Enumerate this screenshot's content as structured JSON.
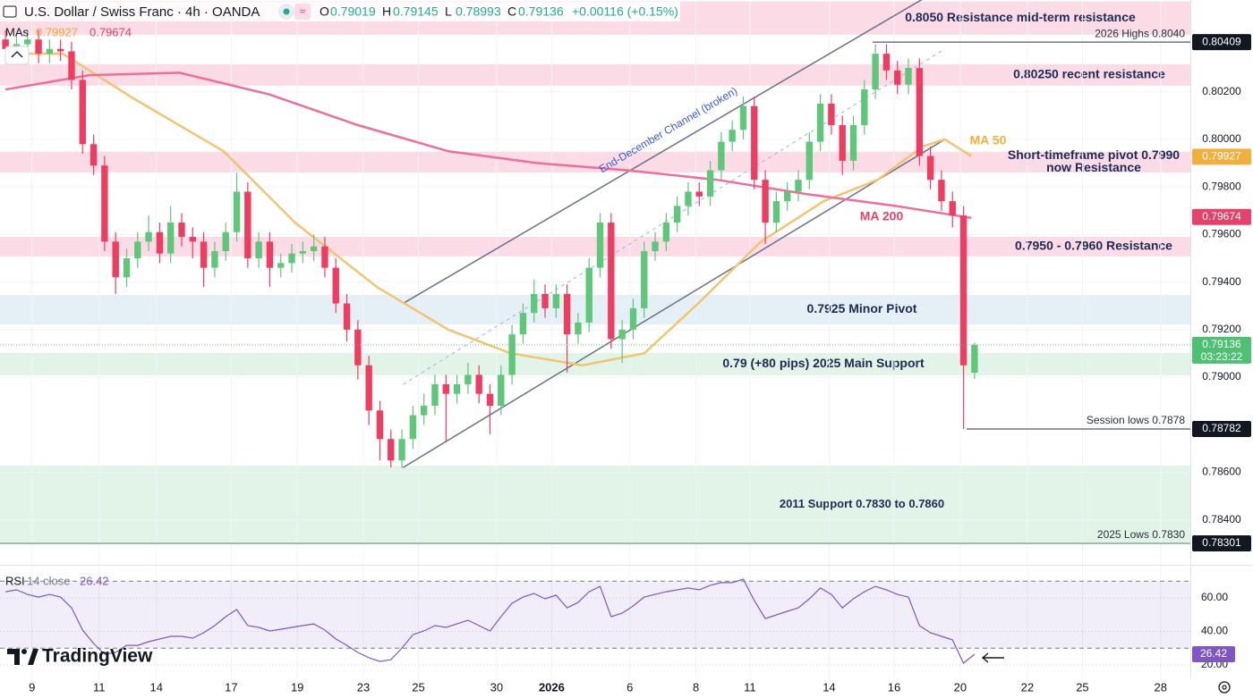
{
  "chart_data": {
    "type": "candlestick",
    "header": {
      "symbol": "U.S. Dollar / Swiss Franc · 4h · OANDA",
      "ohlc_labels": [
        "O",
        "H",
        "L",
        "C"
      ],
      "change": "+0.00116 (+0.15%)",
      "mas_label": "MAs",
      "countdown": "03:23:22"
    },
    "up_color": "#5fc67a",
    "down_color": "#ee3d61",
    "xlim": [
      -0.5,
      107.6
    ],
    "xticks": [
      {
        "value": 2.4,
        "label": "9"
      },
      {
        "value": 8.5,
        "label": "11"
      },
      {
        "value": 13.7,
        "label": "14"
      },
      {
        "value": 20.5,
        "label": "17"
      },
      {
        "value": 26.5,
        "label": "19"
      },
      {
        "value": 32.5,
        "label": "23"
      },
      {
        "value": 37.5,
        "label": "25"
      },
      {
        "value": 44.6,
        "label": "30"
      },
      {
        "value": 49.6,
        "label": "2026"
      },
      {
        "value": 56.7,
        "label": "6"
      },
      {
        "value": 62.7,
        "label": "8"
      },
      {
        "value": 67.6,
        "label": "11"
      },
      {
        "value": 74.8,
        "label": "14"
      },
      {
        "value": 80.7,
        "label": "16"
      },
      {
        "value": 86.7,
        "label": "20"
      },
      {
        "value": 92.8,
        "label": "22"
      },
      {
        "value": 97.8,
        "label": "25"
      },
      {
        "value": 104.9,
        "label": "28"
      }
    ],
    "ylim": [
      0.78211,
      0.80586
    ],
    "yticks": [
      {
        "value": 0.802,
        "label": "0.80200"
      },
      {
        "value": 0.8,
        "label": "0.80000"
      },
      {
        "value": 0.798,
        "label": "0.79800"
      },
      {
        "value": 0.796,
        "label": "0.79600"
      },
      {
        "value": 0.794,
        "label": "0.79400"
      },
      {
        "value": 0.792,
        "label": "0.79200"
      },
      {
        "value": 0.79,
        "label": "0.79000"
      },
      {
        "value": 0.786,
        "label": "0.78600"
      },
      {
        "value": 0.784,
        "label": "0.78400"
      }
    ],
    "grid": true,
    "open": [
      0.8042,
      0.8038,
      0.804,
      0.8042,
      0.8036,
      0.8038,
      0.8037,
      0.8025,
      0.7998,
      0.7989,
      0.7957,
      0.7942,
      0.795,
      0.7957,
      0.7961,
      0.7952,
      0.7965,
      0.7959,
      0.7957,
      0.7946,
      0.7953,
      0.7961,
      0.7978,
      0.795,
      0.7957,
      0.7946,
      0.7948,
      0.7952,
      0.7953,
      0.7955,
      0.7946,
      0.7931,
      0.792,
      0.7905,
      0.7886,
      0.7874,
      0.7865,
      0.7874,
      0.7884,
      0.7888,
      0.7897,
      0.7893,
      0.7897,
      0.7901,
      0.7893,
      0.7888,
      0.7901,
      0.7918,
      0.7927,
      0.7935,
      0.7929,
      0.7935,
      0.7918,
      0.7923,
      0.7946,
      0.7965,
      0.7916,
      0.792,
      0.7929,
      0.7953,
      0.7957,
      0.7965,
      0.7972,
      0.7978,
      0.7976,
      0.7987,
      0.7999,
      0.8004,
      0.8014,
      0.7983,
      0.7965,
      0.7974,
      0.7978,
      0.7983,
      0.7999,
      0.8015,
      0.8006,
      0.7991,
      0.8006,
      0.8021,
      0.8036,
      0.8029,
      0.8023,
      0.803,
      0.7993,
      0.7983,
      0.7974,
      0.7968,
      0.79019
    ],
    "high": [
      0.8046,
      0.8044,
      0.8046,
      0.8046,
      0.8042,
      0.8042,
      0.8041,
      0.8029,
      0.8002,
      0.7993,
      0.7961,
      0.7954,
      0.7961,
      0.7968,
      0.7965,
      0.7972,
      0.7969,
      0.7963,
      0.7961,
      0.7957,
      0.7965,
      0.7986,
      0.7982,
      0.7961,
      0.7961,
      0.7952,
      0.7956,
      0.7957,
      0.796,
      0.7959,
      0.795,
      0.7935,
      0.7924,
      0.7909,
      0.789,
      0.7878,
      0.7878,
      0.7888,
      0.7893,
      0.7901,
      0.7901,
      0.7901,
      0.7906,
      0.7905,
      0.7897,
      0.7905,
      0.7922,
      0.7931,
      0.7941,
      0.7939,
      0.7939,
      0.7939,
      0.7927,
      0.795,
      0.7969,
      0.7969,
      0.7924,
      0.7933,
      0.7957,
      0.7961,
      0.7969,
      0.7976,
      0.7982,
      0.7982,
      0.7991,
      0.8003,
      0.8008,
      0.8018,
      0.8018,
      0.7987,
      0.7978,
      0.7982,
      0.7987,
      0.8003,
      0.8019,
      0.8019,
      0.801,
      0.801,
      0.8025,
      0.804,
      0.804,
      0.8033,
      0.8034,
      0.8034,
      0.7997,
      0.7987,
      0.7978,
      0.7972,
      0.79145
    ],
    "low": [
      0.8034,
      0.8034,
      0.8036,
      0.8032,
      0.8032,
      0.8033,
      0.8021,
      0.7994,
      0.7985,
      0.7953,
      0.7935,
      0.7938,
      0.7946,
      0.7953,
      0.7948,
      0.7948,
      0.7955,
      0.795,
      0.7938,
      0.7942,
      0.7949,
      0.7957,
      0.7946,
      0.7946,
      0.7938,
      0.7942,
      0.7944,
      0.7948,
      0.7949,
      0.7942,
      0.7927,
      0.7915,
      0.7899,
      0.788,
      0.7865,
      0.7862,
      0.7862,
      0.787,
      0.788,
      0.7884,
      0.7873,
      0.7889,
      0.7893,
      0.7889,
      0.7876,
      0.7884,
      0.7897,
      0.7914,
      0.7923,
      0.7925,
      0.7925,
      0.7902,
      0.7914,
      0.7919,
      0.7942,
      0.7912,
      0.7906,
      0.7916,
      0.7925,
      0.7949,
      0.7953,
      0.7961,
      0.7968,
      0.7972,
      0.7972,
      0.7983,
      0.7995,
      0.8,
      0.7979,
      0.7956,
      0.7961,
      0.797,
      0.7974,
      0.7979,
      0.7995,
      0.8002,
      0.7985,
      0.7987,
      0.8002,
      0.8017,
      0.8025,
      0.8019,
      0.8019,
      0.7989,
      0.7979,
      0.797,
      0.7963,
      0.78782,
      0.78993
    ],
    "close": [
      0.8038,
      0.804,
      0.8042,
      0.8036,
      0.8038,
      0.8037,
      0.8025,
      0.7998,
      0.7989,
      0.7957,
      0.7942,
      0.795,
      0.7957,
      0.7961,
      0.7952,
      0.7965,
      0.7959,
      0.7957,
      0.7946,
      0.7953,
      0.7961,
      0.7978,
      0.795,
      0.7957,
      0.7946,
      0.7948,
      0.7952,
      0.7953,
      0.7955,
      0.7946,
      0.7931,
      0.792,
      0.7905,
      0.7886,
      0.7874,
      0.7865,
      0.7874,
      0.7884,
      0.7888,
      0.7897,
      0.7893,
      0.7897,
      0.7901,
      0.7893,
      0.7888,
      0.7901,
      0.7918,
      0.7927,
      0.7935,
      0.7929,
      0.7935,
      0.7918,
      0.7923,
      0.7946,
      0.7965,
      0.7916,
      0.792,
      0.7929,
      0.7953,
      0.7957,
      0.7965,
      0.7972,
      0.7978,
      0.7976,
      0.7987,
      0.7999,
      0.8004,
      0.8014,
      0.7983,
      0.7965,
      0.7974,
      0.7978,
      0.7983,
      0.7999,
      0.8015,
      0.8006,
      0.7991,
      0.8006,
      0.8021,
      0.8036,
      0.8029,
      0.8023,
      0.803,
      0.7993,
      0.7983,
      0.7974,
      0.7968,
      0.7905,
      0.79136
    ],
    "series": [
      {
        "name": "MA 50",
        "color": "#f0c470",
        "last": 0.79927,
        "x": [
          0,
          5.2,
          11.7,
          19.8,
          26.3,
          33.7,
          40.2,
          45.9,
          52.4,
          58,
          62.9,
          68.6,
          74.3,
          79.2,
          83.3,
          85.3,
          87.7
        ],
        "values": [
          0.8036,
          0.8036,
          0.8017,
          0.7995,
          0.7965,
          0.7938,
          0.792,
          0.791,
          0.7905,
          0.791,
          0.7931,
          0.7957,
          0.7974,
          0.7983,
          0.7997,
          0.8,
          0.7993
        ]
      },
      {
        "name": "MA 200",
        "color": "#ec6f99",
        "last": 0.79674,
        "x": [
          0,
          7.6,
          15.8,
          23.9,
          32,
          40.2,
          48.3,
          56.4,
          64.6,
          72.7,
          80.8,
          87.7
        ],
        "values": [
          0.8021,
          0.8027,
          0.8028,
          0.8019,
          0.8006,
          0.7995,
          0.799,
          0.7987,
          0.7983,
          0.7977,
          0.7972,
          0.7967
        ]
      }
    ],
    "zones": [
      {
        "label": [
          "0.8050 Resistance mid-term resistance"
        ],
        "from": 0.8044,
        "to": 0.8058,
        "color": "#fadbe6"
      },
      {
        "label": [
          "0.80250 recent resistance"
        ],
        "from": 0.80226,
        "to": 0.80316,
        "color": "#fadbe6"
      },
      {
        "label": [
          "Short-timeframe pivot 0.7990",
          "now Resistance"
        ],
        "from": 0.79861,
        "to": 0.79948,
        "color": "#fadbe6"
      },
      {
        "label": [
          "0.7950 - 0.7960 Resistance"
        ],
        "from": 0.79508,
        "to": 0.7959,
        "color": "#fadbe6"
      },
      {
        "label": [
          "0.7925 Minor Pivot"
        ],
        "from": 0.79222,
        "to": 0.79346,
        "color": "#e4eff6"
      },
      {
        "label": [
          "0.79 (+80 pips) 2025 Main Support"
        ],
        "from": 0.79008,
        "to": 0.79102,
        "color": "#e2f4e8"
      },
      {
        "label": [
          "2011 Support 0.7830 to 0.7860"
        ],
        "from": 0.78301,
        "to": 0.78628,
        "color": "#e2f4e8"
      }
    ],
    "levels": [
      {
        "label": "2026 Highs 0.8040",
        "value": 0.80409
      },
      {
        "label": "Session lows 0.7878",
        "value": 0.78782
      },
      {
        "label": "2025 Lows 0.7830",
        "value": 0.78301
      }
    ],
    "channel": {
      "label": "End-December Channel (broken)",
      "color": "#6a7186",
      "lines": [
        {
          "x": [
            36.1,
            83.3
          ],
          "y": [
            0.7931,
            0.8059
          ]
        },
        {
          "x": [
            36.1,
            85.3
          ],
          "y": [
            0.7862,
            0.8
          ]
        },
        {
          "x": [
            36.1,
            85.3
          ],
          "y": [
            0.7897,
            0.8038
          ]
        }
      ]
    },
    "rsi": {
      "name": "RSI",
      "params": "14 close",
      "color": "#7e57c2",
      "ylim": [
        11.5,
        79.2
      ],
      "band": [
        30,
        70
      ],
      "yticks": [
        {
          "value": 60,
          "label": "60.00"
        },
        {
          "value": 40,
          "label": "40.00"
        },
        {
          "value": 20,
          "label": "20.00"
        }
      ],
      "values": [
        63.7,
        64.8,
        62.1,
        60.5,
        62.1,
        60.5,
        54.1,
        40.8,
        32.8,
        26.4,
        27.5,
        31.7,
        31.7,
        33.9,
        35.5,
        37.1,
        37.1,
        36.0,
        39.2,
        43.5,
        48.8,
        53.1,
        43.5,
        42.4,
        40.3,
        41.3,
        42.4,
        43.5,
        44.5,
        40.8,
        35.5,
        31.7,
        27.5,
        24.3,
        22.1,
        23.2,
        30.1,
        38.1,
        40.3,
        43.5,
        42.4,
        44.5,
        46.7,
        43.5,
        40.3,
        48.8,
        56.8,
        60.5,
        62.7,
        59.5,
        61.6,
        54.1,
        57.3,
        63.7,
        66.9,
        48.8,
        50.9,
        55.2,
        60.5,
        62.1,
        63.7,
        64.8,
        65.9,
        64.8,
        67.5,
        69.1,
        69.1,
        71.2,
        58.4,
        47.7,
        49.9,
        52.0,
        54.1,
        59.5,
        65.9,
        62.1,
        54.1,
        59.5,
        63.7,
        66.9,
        64.8,
        62.1,
        60.5,
        43.5,
        39.2,
        37.1,
        35.0,
        21.1,
        26.42
      ]
    },
    "brand": "TradingView"
  }
}
